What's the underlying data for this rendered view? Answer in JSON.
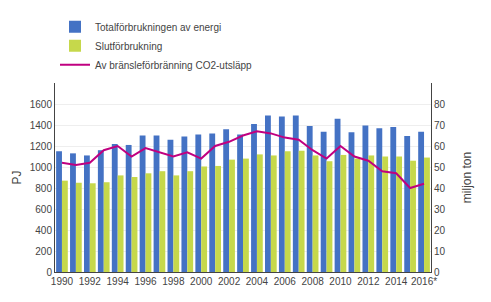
{
  "chart_data": {
    "type": "bar",
    "categories": [
      "1990",
      null,
      "1992",
      null,
      "1994",
      null,
      "1996",
      null,
      "1998",
      null,
      "2000",
      null,
      "2002",
      null,
      "2004",
      null,
      "2006",
      null,
      "2008",
      null,
      "2010",
      null,
      "2012",
      null,
      "2014",
      null,
      "2016*"
    ],
    "series": [
      {
        "name": "Totalförbrukningen av energi",
        "color": "#4472c4",
        "type": "bar",
        "values": [
          1150,
          1130,
          1110,
          1160,
          1220,
          1210,
          1300,
          1300,
          1260,
          1290,
          1310,
          1320,
          1360,
          1310,
          1410,
          1490,
          1480,
          1490,
          1390,
          1335,
          1460,
          1330,
          1395,
          1370,
          1380,
          1295,
          1335
        ]
      },
      {
        "name": "Slutförbrukning",
        "color": "#c6d84b",
        "type": "bar",
        "values": [
          870,
          850,
          845,
          855,
          920,
          905,
          940,
          960,
          920,
          960,
          1005,
          1010,
          1070,
          1080,
          1120,
          1110,
          1150,
          1155,
          1110,
          1055,
          1115,
          1080,
          1110,
          1100,
          1100,
          1060,
          1090
        ]
      },
      {
        "name": "Av bränsleförbränning CO2-utsläpp",
        "color": "#c00080",
        "type": "line",
        "axis": "y2",
        "values": [
          52,
          51,
          52,
          58,
          60,
          55,
          59,
          57,
          55,
          57,
          54,
          60,
          62,
          65,
          67,
          66,
          64,
          63,
          58,
          54,
          60,
          55,
          53,
          48,
          47,
          40,
          42
        ]
      }
    ],
    "ylabel": "PJ",
    "y2label": "miljon ton",
    "ylim": [
      0,
      1800
    ],
    "yticks": [
      0,
      200,
      400,
      600,
      800,
      1000,
      1200,
      1400,
      1600
    ],
    "y2lim": [
      0,
      90
    ],
    "y2ticks": [
      0,
      10,
      20,
      30,
      40,
      50,
      60,
      70,
      80
    ],
    "grid": true,
    "legend": "upper left"
  }
}
